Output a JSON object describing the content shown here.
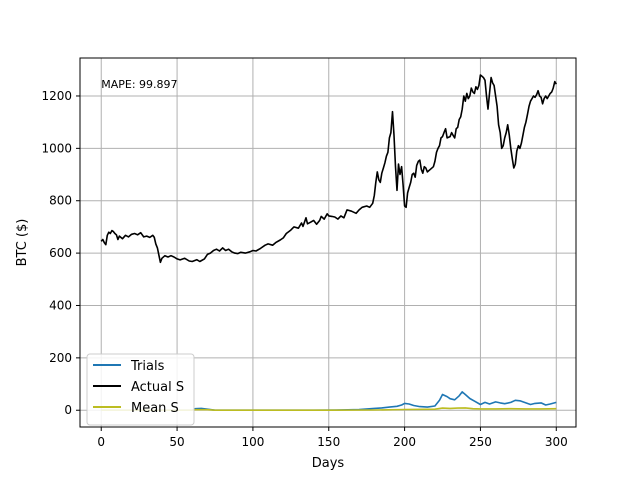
{
  "chart_data": {
    "type": "line",
    "title": "",
    "xlabel": "Days",
    "ylabel": "BTC ($)",
    "xlim": [
      -14,
      313
    ],
    "ylim": [
      -64,
      1345
    ],
    "grid": true,
    "legend_placement": "lower-left",
    "annotation": "MAPE: 99.897",
    "x_ticks": [
      0,
      50,
      100,
      150,
      200,
      250,
      300
    ],
    "y_ticks": [
      0,
      200,
      400,
      600,
      800,
      1000,
      1200
    ],
    "series": [
      {
        "name": "Trials",
        "color": "#1f77b4",
        "points": [
          [
            0,
            0
          ],
          [
            20,
            0
          ],
          [
            40,
            0
          ],
          [
            60,
            0
          ],
          [
            62,
            6
          ],
          [
            66,
            7
          ],
          [
            70,
            4
          ],
          [
            75,
            0
          ],
          [
            100,
            0
          ],
          [
            140,
            0
          ],
          [
            155,
            1
          ],
          [
            170,
            3
          ],
          [
            180,
            7
          ],
          [
            185,
            9
          ],
          [
            190,
            12
          ],
          [
            195,
            15
          ],
          [
            198,
            20
          ],
          [
            200,
            26
          ],
          [
            203,
            24
          ],
          [
            206,
            18
          ],
          [
            210,
            14
          ],
          [
            215,
            12
          ],
          [
            220,
            16
          ],
          [
            223,
            38
          ],
          [
            225,
            60
          ],
          [
            228,
            52
          ],
          [
            230,
            44
          ],
          [
            233,
            40
          ],
          [
            236,
            55
          ],
          [
            238,
            70
          ],
          [
            240,
            60
          ],
          [
            243,
            45
          ],
          [
            246,
            35
          ],
          [
            250,
            22
          ],
          [
            253,
            30
          ],
          [
            256,
            24
          ],
          [
            260,
            32
          ],
          [
            263,
            28
          ],
          [
            266,
            25
          ],
          [
            270,
            30
          ],
          [
            273,
            38
          ],
          [
            276,
            36
          ],
          [
            280,
            28
          ],
          [
            283,
            22
          ],
          [
            286,
            26
          ],
          [
            290,
            28
          ],
          [
            293,
            20
          ],
          [
            296,
            24
          ],
          [
            300,
            30
          ]
        ]
      },
      {
        "name": "Actual S",
        "color": "#000000",
        "points": [
          [
            0,
            645
          ],
          [
            1,
            652
          ],
          [
            2,
            640
          ],
          [
            3,
            632
          ],
          [
            4,
            668
          ],
          [
            5,
            680
          ],
          [
            6,
            675
          ],
          [
            7,
            686
          ],
          [
            8,
            682
          ],
          [
            9,
            675
          ],
          [
            10,
            670
          ],
          [
            11,
            652
          ],
          [
            12,
            665
          ],
          [
            14,
            655
          ],
          [
            16,
            668
          ],
          [
            18,
            662
          ],
          [
            20,
            672
          ],
          [
            22,
            675
          ],
          [
            24,
            670
          ],
          [
            26,
            678
          ],
          [
            28,
            662
          ],
          [
            30,
            665
          ],
          [
            32,
            660
          ],
          [
            34,
            668
          ],
          [
            35,
            660
          ],
          [
            36,
            635
          ],
          [
            37,
            620
          ],
          [
            38,
            592
          ],
          [
            39,
            565
          ],
          [
            40,
            580
          ],
          [
            42,
            590
          ],
          [
            44,
            585
          ],
          [
            46,
            590
          ],
          [
            48,
            585
          ],
          [
            50,
            578
          ],
          [
            52,
            574
          ],
          [
            55,
            580
          ],
          [
            58,
            570
          ],
          [
            60,
            568
          ],
          [
            63,
            575
          ],
          [
            65,
            568
          ],
          [
            68,
            578
          ],
          [
            70,
            595
          ],
          [
            72,
            600
          ],
          [
            74,
            610
          ],
          [
            76,
            615
          ],
          [
            78,
            608
          ],
          [
            80,
            620
          ],
          [
            82,
            610
          ],
          [
            84,
            615
          ],
          [
            86,
            605
          ],
          [
            88,
            600
          ],
          [
            90,
            598
          ],
          [
            92,
            603
          ],
          [
            95,
            600
          ],
          [
            98,
            605
          ],
          [
            100,
            610
          ],
          [
            102,
            608
          ],
          [
            105,
            618
          ],
          [
            108,
            630
          ],
          [
            110,
            635
          ],
          [
            113,
            630
          ],
          [
            115,
            640
          ],
          [
            118,
            650
          ],
          [
            120,
            658
          ],
          [
            122,
            675
          ],
          [
            125,
            688
          ],
          [
            127,
            700
          ],
          [
            130,
            695
          ],
          [
            132,
            715
          ],
          [
            133,
            702
          ],
          [
            135,
            735
          ],
          [
            136,
            712
          ],
          [
            138,
            718
          ],
          [
            140,
            725
          ],
          [
            142,
            710
          ],
          [
            144,
            725
          ],
          [
            145,
            740
          ],
          [
            147,
            730
          ],
          [
            149,
            750
          ],
          [
            150,
            742
          ],
          [
            152,
            740
          ],
          [
            154,
            738
          ],
          [
            156,
            730
          ],
          [
            158,
            742
          ],
          [
            160,
            735
          ],
          [
            162,
            765
          ],
          [
            165,
            760
          ],
          [
            168,
            752
          ],
          [
            170,
            765
          ],
          [
            172,
            775
          ],
          [
            175,
            780
          ],
          [
            177,
            775
          ],
          [
            179,
            790
          ],
          [
            180,
            820
          ],
          [
            181,
            870
          ],
          [
            182,
            910
          ],
          [
            183,
            880
          ],
          [
            184,
            870
          ],
          [
            185,
            905
          ],
          [
            186,
            925
          ],
          [
            187,
            945
          ],
          [
            188,
            970
          ],
          [
            189,
            985
          ],
          [
            190,
            1040
          ],
          [
            191,
            1060
          ],
          [
            192,
            1140
          ],
          [
            193,
            1050
          ],
          [
            194,
            930
          ],
          [
            195,
            840
          ],
          [
            196,
            940
          ],
          [
            197,
            900
          ],
          [
            198,
            930
          ],
          [
            199,
            860
          ],
          [
            200,
            780
          ],
          [
            201,
            775
          ],
          [
            202,
            830
          ],
          [
            203,
            850
          ],
          [
            204,
            870
          ],
          [
            205,
            900
          ],
          [
            206,
            905
          ],
          [
            207,
            890
          ],
          [
            208,
            935
          ],
          [
            209,
            950
          ],
          [
            210,
            955
          ],
          [
            211,
            920
          ],
          [
            212,
            905
          ],
          [
            213,
            930
          ],
          [
            214,
            925
          ],
          [
            215,
            910
          ],
          [
            217,
            920
          ],
          [
            219,
            930
          ],
          [
            220,
            950
          ],
          [
            221,
            985
          ],
          [
            222,
            1000
          ],
          [
            223,
            1010
          ],
          [
            224,
            1040
          ],
          [
            225,
            1045
          ],
          [
            226,
            1060
          ],
          [
            227,
            1075
          ],
          [
            228,
            1040
          ],
          [
            230,
            1045
          ],
          [
            231,
            1060
          ],
          [
            232,
            1050
          ],
          [
            233,
            1040
          ],
          [
            234,
            1075
          ],
          [
            235,
            1080
          ],
          [
            236,
            1110
          ],
          [
            237,
            1120
          ],
          [
            238,
            1150
          ],
          [
            239,
            1200
          ],
          [
            240,
            1180
          ],
          [
            241,
            1210
          ],
          [
            242,
            1190
          ],
          [
            243,
            1200
          ],
          [
            244,
            1230
          ],
          [
            245,
            1215
          ],
          [
            246,
            1210
          ],
          [
            247,
            1235
          ],
          [
            248,
            1225
          ],
          [
            249,
            1240
          ],
          [
            250,
            1280
          ],
          [
            251,
            1275
          ],
          [
            252,
            1270
          ],
          [
            253,
            1260
          ],
          [
            254,
            1200
          ],
          [
            255,
            1150
          ],
          [
            256,
            1210
          ],
          [
            257,
            1270
          ],
          [
            258,
            1250
          ],
          [
            259,
            1240
          ],
          [
            260,
            1200
          ],
          [
            261,
            1160
          ],
          [
            262,
            1090
          ],
          [
            263,
            1060
          ],
          [
            264,
            1000
          ],
          [
            265,
            1010
          ],
          [
            266,
            1040
          ],
          [
            267,
            1060
          ],
          [
            268,
            1090
          ],
          [
            269,
            1050
          ],
          [
            270,
            1000
          ],
          [
            271,
            960
          ],
          [
            272,
            925
          ],
          [
            273,
            940
          ],
          [
            274,
            990
          ],
          [
            275,
            1010
          ],
          [
            276,
            1000
          ],
          [
            277,
            1020
          ],
          [
            278,
            1050
          ],
          [
            279,
            1080
          ],
          [
            280,
            1100
          ],
          [
            281,
            1130
          ],
          [
            282,
            1160
          ],
          [
            283,
            1180
          ],
          [
            284,
            1190
          ],
          [
            285,
            1200
          ],
          [
            286,
            1195
          ],
          [
            287,
            1205
          ],
          [
            288,
            1220
          ],
          [
            289,
            1200
          ],
          [
            290,
            1195
          ],
          [
            291,
            1170
          ],
          [
            292,
            1190
          ],
          [
            293,
            1200
          ],
          [
            294,
            1190
          ],
          [
            295,
            1200
          ],
          [
            296,
            1210
          ],
          [
            297,
            1215
          ],
          [
            298,
            1230
          ],
          [
            299,
            1255
          ],
          [
            300,
            1245
          ]
        ]
      },
      {
        "name": "Mean S",
        "color": "#bcbd22",
        "points": [
          [
            0,
            0
          ],
          [
            60,
            0
          ],
          [
            62,
            2
          ],
          [
            70,
            2
          ],
          [
            75,
            0
          ],
          [
            150,
            0
          ],
          [
            180,
            1
          ],
          [
            200,
            3
          ],
          [
            220,
            4
          ],
          [
            225,
            8
          ],
          [
            230,
            7
          ],
          [
            235,
            8
          ],
          [
            240,
            9
          ],
          [
            245,
            6
          ],
          [
            250,
            5
          ],
          [
            260,
            5
          ],
          [
            270,
            6
          ],
          [
            280,
            5
          ],
          [
            290,
            5
          ],
          [
            300,
            6
          ]
        ]
      }
    ]
  }
}
